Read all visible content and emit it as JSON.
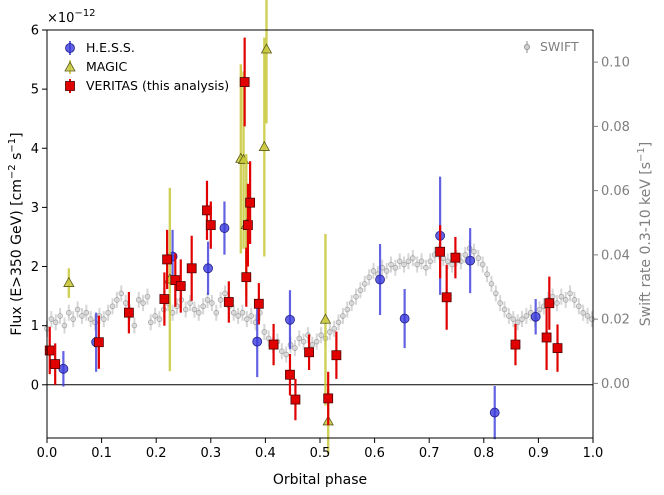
{
  "chart_data": {
    "type": "scatter",
    "xlabel": "Orbital phase",
    "ylabel_prefix": "Flux (E>350 GeV) [cm",
    "ylabel_mid": " s",
    "ylabel_suffix": "]",
    "ylabel_exp": "−2",
    "ylabel_exp2": "−1",
    "y2label_prefix": "Swift rate 0.3-10 keV [s",
    "y2label_suffix": "]",
    "y2label_exp": "−1",
    "yscale_prefix": "×10",
    "yscale_exp": "−12",
    "xlim": [
      0.0,
      1.0
    ],
    "ylim": [
      -0.9,
      6.0
    ],
    "y2lim": [
      -0.017,
      0.11
    ],
    "xticks": [
      "0.0",
      "0.1",
      "0.2",
      "0.3",
      "0.4",
      "0.5",
      "0.6",
      "0.7",
      "0.8",
      "0.9",
      "1.0"
    ],
    "xtick_values": [
      0.0,
      0.1,
      0.2,
      0.3,
      0.4,
      0.5,
      0.6,
      0.7,
      0.8,
      0.9,
      1.0
    ],
    "yticks": [
      "0",
      "1",
      "2",
      "3",
      "4",
      "5",
      "6"
    ],
    "ytick_values": [
      0,
      1,
      2,
      3,
      4,
      5,
      6
    ],
    "y2ticks": [
      "0.00",
      "0.02",
      "0.04",
      "0.06",
      "0.08",
      "0.10"
    ],
    "y2tick_values": [
      0.0,
      0.02,
      0.04,
      0.06,
      0.08,
      0.1
    ],
    "legend": {
      "hess": "H.E.S.S.",
      "magic": "MAGIC",
      "veritas": "VERITAS (this analysis)",
      "swift": "SWIFT"
    },
    "colors": {
      "hess": "#3b3bdc",
      "magic": "#c8c83a",
      "veritas": "#e00000",
      "swift": "#8c8c8c"
    },
    "series": [
      {
        "name": "H.E.S.S.",
        "marker": "circle",
        "points": [
          {
            "x": 0.03,
            "y": 0.27,
            "err": 0.3
          },
          {
            "x": 0.09,
            "y": 0.72,
            "err": 0.5
          },
          {
            "x": 0.23,
            "y": 2.17,
            "err": 0.45
          },
          {
            "x": 0.295,
            "y": 1.97,
            "err": 0.45
          },
          {
            "x": 0.325,
            "y": 2.65,
            "err": 0.45
          },
          {
            "x": 0.385,
            "y": 0.73,
            "err": 0.6
          },
          {
            "x": 0.445,
            "y": 1.1,
            "err": 0.5
          },
          {
            "x": 0.61,
            "y": 1.78,
            "err": 0.6
          },
          {
            "x": 0.655,
            "y": 1.12,
            "err": 0.5
          },
          {
            "x": 0.72,
            "y": 2.52,
            "err": 1.0
          },
          {
            "x": 0.775,
            "y": 2.1,
            "err": 0.55
          },
          {
            "x": 0.82,
            "y": -0.47,
            "err": 0.45
          },
          {
            "x": 0.895,
            "y": 1.15,
            "err": 0.3
          }
        ]
      },
      {
        "name": "MAGIC",
        "marker": "triangle",
        "points": [
          {
            "x": 0.04,
            "y": 1.72,
            "err": 0.25
          },
          {
            "x": 0.225,
            "y": 1.78,
            "err": 1.55
          },
          {
            "x": 0.355,
            "y": 3.82,
            "err": 1.6
          },
          {
            "x": 0.36,
            "y": 3.8,
            "err": 1.5
          },
          {
            "x": 0.365,
            "y": 2.7,
            "err": 1.2
          },
          {
            "x": 0.398,
            "y": 4.02,
            "err": 1.85
          },
          {
            "x": 0.402,
            "y": 5.67,
            "err": 1.25
          },
          {
            "x": 0.51,
            "y": 1.1,
            "err": 1.45
          },
          {
            "x": 0.515,
            "y": -0.62,
            "err": 0.55
          }
        ]
      },
      {
        "name": "VERITAS (this analysis)",
        "marker": "square",
        "points": [
          {
            "x": 0.005,
            "y": 0.58,
            "err": 0.4
          },
          {
            "x": 0.015,
            "y": 0.35,
            "err": 0.35
          },
          {
            "x": 0.095,
            "y": 0.72,
            "err": 0.45
          },
          {
            "x": 0.15,
            "y": 1.22,
            "err": 0.35
          },
          {
            "x": 0.215,
            "y": 1.45,
            "err": 0.45
          },
          {
            "x": 0.22,
            "y": 2.12,
            "err": 0.5
          },
          {
            "x": 0.235,
            "y": 1.77,
            "err": 0.45
          },
          {
            "x": 0.245,
            "y": 1.67,
            "err": 0.45
          },
          {
            "x": 0.265,
            "y": 1.97,
            "err": 0.55
          },
          {
            "x": 0.293,
            "y": 2.95,
            "err": 0.5
          },
          {
            "x": 0.3,
            "y": 2.7,
            "err": 0.4
          },
          {
            "x": 0.333,
            "y": 1.4,
            "err": 0.35
          },
          {
            "x": 0.362,
            "y": 5.12,
            "err": 0.75
          },
          {
            "x": 0.365,
            "y": 1.82,
            "err": 0.5
          },
          {
            "x": 0.368,
            "y": 2.7,
            "err": 0.7
          },
          {
            "x": 0.372,
            "y": 3.08,
            "err": 0.7
          },
          {
            "x": 0.388,
            "y": 1.37,
            "err": 0.35
          },
          {
            "x": 0.415,
            "y": 0.68,
            "err": 0.35
          },
          {
            "x": 0.445,
            "y": 0.17,
            "err": 0.35
          },
          {
            "x": 0.455,
            "y": -0.25,
            "err": 0.35
          },
          {
            "x": 0.48,
            "y": 0.55,
            "err": 0.3
          },
          {
            "x": 0.515,
            "y": -0.23,
            "err": 0.45
          },
          {
            "x": 0.53,
            "y": 0.5,
            "err": 0.4
          },
          {
            "x": 0.72,
            "y": 2.25,
            "err": 0.45
          },
          {
            "x": 0.732,
            "y": 1.48,
            "err": 0.55
          },
          {
            "x": 0.748,
            "y": 2.15,
            "err": 0.35
          },
          {
            "x": 0.858,
            "y": 0.68,
            "err": 0.35
          },
          {
            "x": 0.915,
            "y": 0.8,
            "err": 0.55
          },
          {
            "x": 0.92,
            "y": 1.38,
            "err": 0.45
          },
          {
            "x": 0.935,
            "y": 0.62,
            "err": 0.4
          }
        ]
      },
      {
        "name": "SWIFT",
        "marker": "small-circle",
        "axis": "right",
        "err": 0.0025,
        "points": [
          {
            "x": 0.0,
            "y": 0.017
          },
          {
            "x": 0.008,
            "y": 0.02
          },
          {
            "x": 0.016,
            "y": 0.019
          },
          {
            "x": 0.024,
            "y": 0.021
          },
          {
            "x": 0.032,
            "y": 0.018
          },
          {
            "x": 0.04,
            "y": 0.022
          },
          {
            "x": 0.048,
            "y": 0.02
          },
          {
            "x": 0.056,
            "y": 0.023
          },
          {
            "x": 0.064,
            "y": 0.021
          },
          {
            "x": 0.072,
            "y": 0.022
          },
          {
            "x": 0.08,
            "y": 0.02
          },
          {
            "x": 0.088,
            "y": 0.019
          },
          {
            "x": 0.096,
            "y": 0.021
          },
          {
            "x": 0.104,
            "y": 0.02
          },
          {
            "x": 0.112,
            "y": 0.022
          },
          {
            "x": 0.12,
            "y": 0.024
          },
          {
            "x": 0.128,
            "y": 0.026
          },
          {
            "x": 0.136,
            "y": 0.028
          },
          {
            "x": 0.144,
            "y": 0.025
          },
          {
            "x": 0.152,
            "y": 0.022
          },
          {
            "x": 0.16,
            "y": 0.018
          },
          {
            "x": 0.168,
            "y": 0.026
          },
          {
            "x": 0.176,
            "y": 0.025
          },
          {
            "x": 0.184,
            "y": 0.027
          },
          {
            "x": 0.19,
            "y": 0.019
          },
          {
            "x": 0.198,
            "y": 0.021
          },
          {
            "x": 0.206,
            "y": 0.02
          },
          {
            "x": 0.214,
            "y": 0.023
          },
          {
            "x": 0.222,
            "y": 0.025
          },
          {
            "x": 0.23,
            "y": 0.022
          },
          {
            "x": 0.238,
            "y": 0.024
          },
          {
            "x": 0.246,
            "y": 0.026
          },
          {
            "x": 0.254,
            "y": 0.023
          },
          {
            "x": 0.262,
            "y": 0.025
          },
          {
            "x": 0.27,
            "y": 0.023
          },
          {
            "x": 0.278,
            "y": 0.022
          },
          {
            "x": 0.286,
            "y": 0.024
          },
          {
            "x": 0.294,
            "y": 0.026
          },
          {
            "x": 0.302,
            "y": 0.025
          },
          {
            "x": 0.31,
            "y": 0.022
          },
          {
            "x": 0.318,
            "y": 0.026
          },
          {
            "x": 0.326,
            "y": 0.028
          },
          {
            "x": 0.334,
            "y": 0.024
          },
          {
            "x": 0.342,
            "y": 0.022
          },
          {
            "x": 0.35,
            "y": 0.021
          },
          {
            "x": 0.358,
            "y": 0.022
          },
          {
            "x": 0.366,
            "y": 0.02
          },
          {
            "x": 0.374,
            "y": 0.021
          },
          {
            "x": 0.382,
            "y": 0.019
          },
          {
            "x": 0.39,
            "y": 0.022
          },
          {
            "x": 0.398,
            "y": 0.016
          },
          {
            "x": 0.406,
            "y": 0.014
          },
          {
            "x": 0.414,
            "y": 0.012
          },
          {
            "x": 0.422,
            "y": 0.013
          },
          {
            "x": 0.43,
            "y": 0.01
          },
          {
            "x": 0.438,
            "y": 0.009
          },
          {
            "x": 0.446,
            "y": 0.012
          },
          {
            "x": 0.454,
            "y": 0.011
          },
          {
            "x": 0.462,
            "y": 0.014
          },
          {
            "x": 0.47,
            "y": 0.013
          },
          {
            "x": 0.478,
            "y": 0.015
          },
          {
            "x": 0.486,
            "y": 0.012
          },
          {
            "x": 0.494,
            "y": 0.013
          },
          {
            "x": 0.502,
            "y": 0.015
          },
          {
            "x": 0.51,
            "y": 0.014
          },
          {
            "x": 0.518,
            "y": 0.016
          },
          {
            "x": 0.526,
            "y": 0.017
          },
          {
            "x": 0.534,
            "y": 0.019
          },
          {
            "x": 0.542,
            "y": 0.021
          },
          {
            "x": 0.55,
            "y": 0.023
          },
          {
            "x": 0.558,
            "y": 0.025
          },
          {
            "x": 0.566,
            "y": 0.027
          },
          {
            "x": 0.574,
            "y": 0.029
          },
          {
            "x": 0.582,
            "y": 0.031
          },
          {
            "x": 0.59,
            "y": 0.033
          },
          {
            "x": 0.598,
            "y": 0.035
          },
          {
            "x": 0.606,
            "y": 0.034
          },
          {
            "x": 0.614,
            "y": 0.036
          },
          {
            "x": 0.622,
            "y": 0.035
          },
          {
            "x": 0.63,
            "y": 0.037
          },
          {
            "x": 0.638,
            "y": 0.036
          },
          {
            "x": 0.646,
            "y": 0.038
          },
          {
            "x": 0.654,
            "y": 0.037
          },
          {
            "x": 0.662,
            "y": 0.038
          },
          {
            "x": 0.67,
            "y": 0.039
          },
          {
            "x": 0.678,
            "y": 0.037
          },
          {
            "x": 0.686,
            "y": 0.038
          },
          {
            "x": 0.694,
            "y": 0.036
          },
          {
            "x": 0.702,
            "y": 0.038
          },
          {
            "x": 0.71,
            "y": 0.04
          },
          {
            "x": 0.718,
            "y": 0.041
          },
          {
            "x": 0.726,
            "y": 0.039
          },
          {
            "x": 0.734,
            "y": 0.038
          },
          {
            "x": 0.742,
            "y": 0.037
          },
          {
            "x": 0.75,
            "y": 0.039
          },
          {
            "x": 0.758,
            "y": 0.038
          },
          {
            "x": 0.766,
            "y": 0.04
          },
          {
            "x": 0.774,
            "y": 0.042
          },
          {
            "x": 0.782,
            "y": 0.041
          },
          {
            "x": 0.79,
            "y": 0.039
          },
          {
            "x": 0.798,
            "y": 0.037
          },
          {
            "x": 0.806,
            "y": 0.034
          },
          {
            "x": 0.814,
            "y": 0.031
          },
          {
            "x": 0.822,
            "y": 0.028
          },
          {
            "x": 0.83,
            "y": 0.025
          },
          {
            "x": 0.838,
            "y": 0.023
          },
          {
            "x": 0.846,
            "y": 0.021
          },
          {
            "x": 0.854,
            "y": 0.02
          },
          {
            "x": 0.862,
            "y": 0.019
          },
          {
            "x": 0.87,
            "y": 0.02
          },
          {
            "x": 0.878,
            "y": 0.021
          },
          {
            "x": 0.886,
            "y": 0.022
          },
          {
            "x": 0.894,
            "y": 0.02
          },
          {
            "x": 0.902,
            "y": 0.023
          },
          {
            "x": 0.91,
            "y": 0.024
          },
          {
            "x": 0.918,
            "y": 0.026
          },
          {
            "x": 0.926,
            "y": 0.027
          },
          {
            "x": 0.934,
            "y": 0.025
          },
          {
            "x": 0.942,
            "y": 0.027
          },
          {
            "x": 0.95,
            "y": 0.026
          },
          {
            "x": 0.958,
            "y": 0.028
          },
          {
            "x": 0.966,
            "y": 0.026
          },
          {
            "x": 0.974,
            "y": 0.024
          },
          {
            "x": 0.982,
            "y": 0.022
          },
          {
            "x": 0.99,
            "y": 0.021
          },
          {
            "x": 0.998,
            "y": 0.02
          }
        ]
      }
    ]
  }
}
